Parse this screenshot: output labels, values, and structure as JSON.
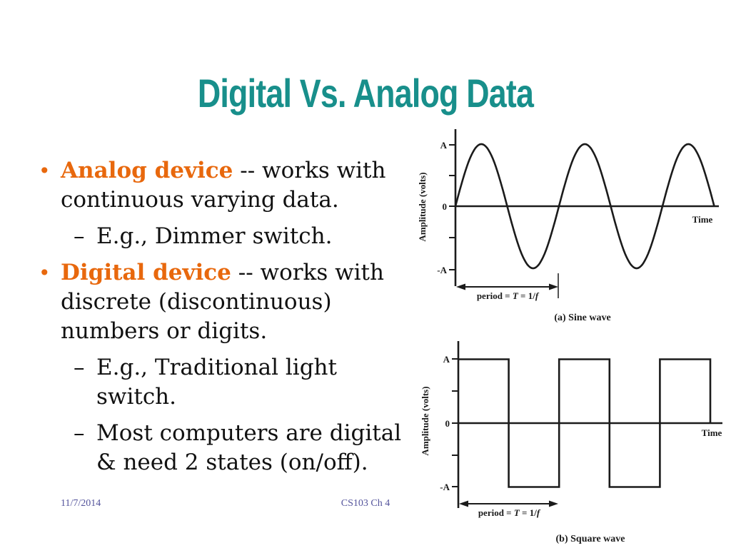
{
  "slide": {
    "title": "Digital Vs. Analog Data",
    "bullet_char": "•",
    "sub_bullet_char": "–",
    "bullets": [
      {
        "type": "main",
        "term": "Analog device",
        "rest": " -- works with continuous varying data."
      },
      {
        "type": "sub",
        "text": "E.g., Dimmer switch."
      },
      {
        "type": "main",
        "term": "Digital device",
        "rest": " -- works with discrete (discontinuous) numbers or digits."
      },
      {
        "type": "sub",
        "text": "E.g., Traditional light switch."
      },
      {
        "type": "sub",
        "text": "Most computers are digital & need 2 states (on/off)."
      }
    ]
  },
  "footer": {
    "date": "11/7/2014",
    "course": "CS103 Ch 4"
  },
  "colors": {
    "title_teal": "#188F8B",
    "accent_orange": "#E8680D",
    "footer_blue": "#53539B",
    "chart_ink": "#1b1b1b"
  },
  "chart_data": [
    {
      "type": "line",
      "waveform": "sine",
      "caption": "(a) Sine wave",
      "xlabel": "Time",
      "ylabel": "Amplitude (volts)",
      "yticks": [
        "A",
        "0",
        "-A"
      ],
      "ylim": [
        "-A",
        "A"
      ],
      "amplitude": "A",
      "cycles": 2.5,
      "start": "zero-rising",
      "grid": false,
      "period_label": {
        "pre": "period = ",
        "T": "T",
        "mid": " = 1/",
        "f": "f"
      }
    },
    {
      "type": "line",
      "waveform": "square",
      "caption": "(b) Square wave",
      "xlabel": "Time",
      "ylabel": "Amplitude (volts)",
      "yticks": [
        "A",
        "0",
        "-A"
      ],
      "ylim": [
        "-A",
        "A"
      ],
      "amplitude": "A",
      "cycles": 2.5,
      "start": "high",
      "grid": false,
      "period_label": {
        "pre": "period = ",
        "T": "T",
        "mid": " = 1/",
        "f": "f"
      }
    }
  ]
}
